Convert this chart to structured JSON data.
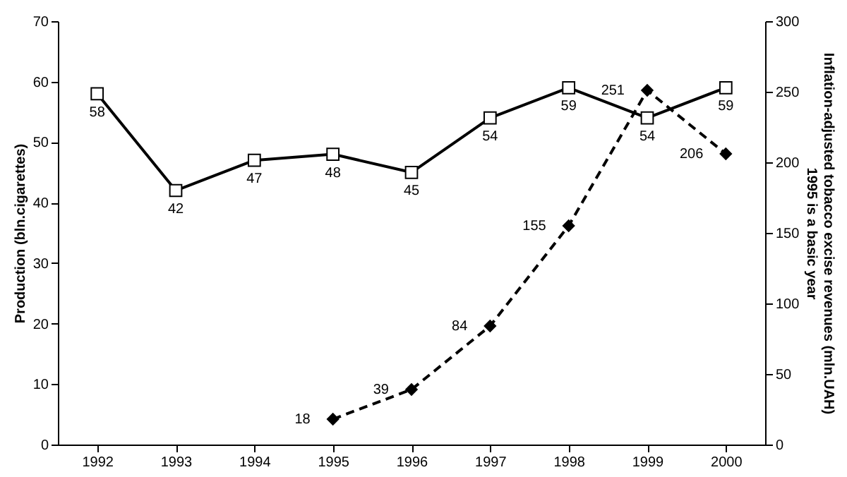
{
  "chart_data": {
    "type": "line",
    "ylabel": "Production (bln.cigarettes)",
    "y2label": "Inflation-adjusted tobacco excise revenues (mln.UAH)\n1995 is a basic year",
    "categories": [
      "1992",
      "1993",
      "1994",
      "1995",
      "1996",
      "1997",
      "1998",
      "1999",
      "2000"
    ],
    "series": [
      {
        "color": "#000000",
        "marker": "square",
        "line_style": "solid",
        "values": [
          58,
          42,
          47,
          48,
          45,
          54,
          59,
          54,
          59
        ]
      },
      {
        "color": "#000000",
        "marker": "diamond",
        "line_style": "dashed",
        "axis": "y2",
        "values": [
          null,
          null,
          null,
          18,
          39,
          84,
          155,
          251,
          206
        ]
      }
    ],
    "ylim": [
      0,
      70
    ],
    "yticks": [
      0,
      10,
      20,
      30,
      40,
      50,
      60,
      70
    ],
    "y2lim": [
      0,
      300
    ],
    "y2ticks": [
      0,
      50,
      100,
      150,
      200,
      250,
      300
    ],
    "data_labels": true
  }
}
